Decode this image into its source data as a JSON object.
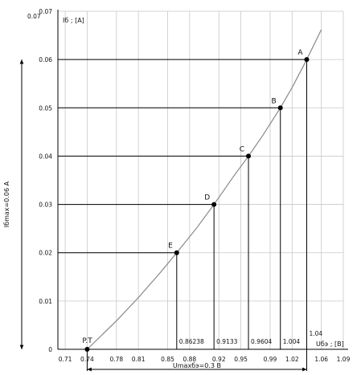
{
  "chart_data": {
    "type": "line",
    "title": "",
    "xlabel": "Uбэ ; [B]",
    "ylabel": "Iб ; [A]",
    "xlim": [
      0.7,
      1.09
    ],
    "ylim": [
      0,
      0.07
    ],
    "x_ticks": [
      "0.71",
      "0.74",
      "0.78",
      "0.81",
      "0.85",
      "0.88",
      "0.92",
      "0.95",
      "0.99",
      "1.02",
      "1.06",
      "1.09"
    ],
    "y_ticks": [
      "0",
      "0.01",
      "0.02",
      "0.03",
      "0.04",
      "0.05",
      "0.06",
      "0.07"
    ],
    "y_tick_top_extra": "0.07",
    "grid": true,
    "series": [
      {
        "color": "#888888",
        "x": [
          0.74,
          0.78,
          0.81,
          0.84,
          0.86238,
          0.89,
          0.9133,
          0.94,
          0.9604,
          0.98,
          1.004,
          1.02,
          1.04,
          1.06
        ],
        "y": [
          0.0,
          0.0059,
          0.0107,
          0.0159,
          0.02,
          0.0252,
          0.03,
          0.0358,
          0.04,
          0.0443,
          0.05,
          0.0542,
          0.06,
          0.0662
        ]
      }
    ],
    "points": [
      {
        "label": "A",
        "x": 1.04,
        "y": 0.06,
        "value_label": "1.04"
      },
      {
        "label": "B",
        "x": 1.004,
        "y": 0.05,
        "value_label": "1.004"
      },
      {
        "label": "C",
        "x": 0.9604,
        "y": 0.04,
        "value_label": "0.9604"
      },
      {
        "label": "D",
        "x": 0.9133,
        "y": 0.03,
        "value_label": "0.9133"
      },
      {
        "label": "E",
        "x": 0.86238,
        "y": 0.02,
        "value_label": "0.86238"
      }
    ],
    "operating_point": {
      "label": "P.T",
      "x": 0.74,
      "y": 0
    },
    "annotations": {
      "i_max": "Iбmax=0.06 A",
      "u_max": "Umaxбэ=0.3 B"
    }
  }
}
